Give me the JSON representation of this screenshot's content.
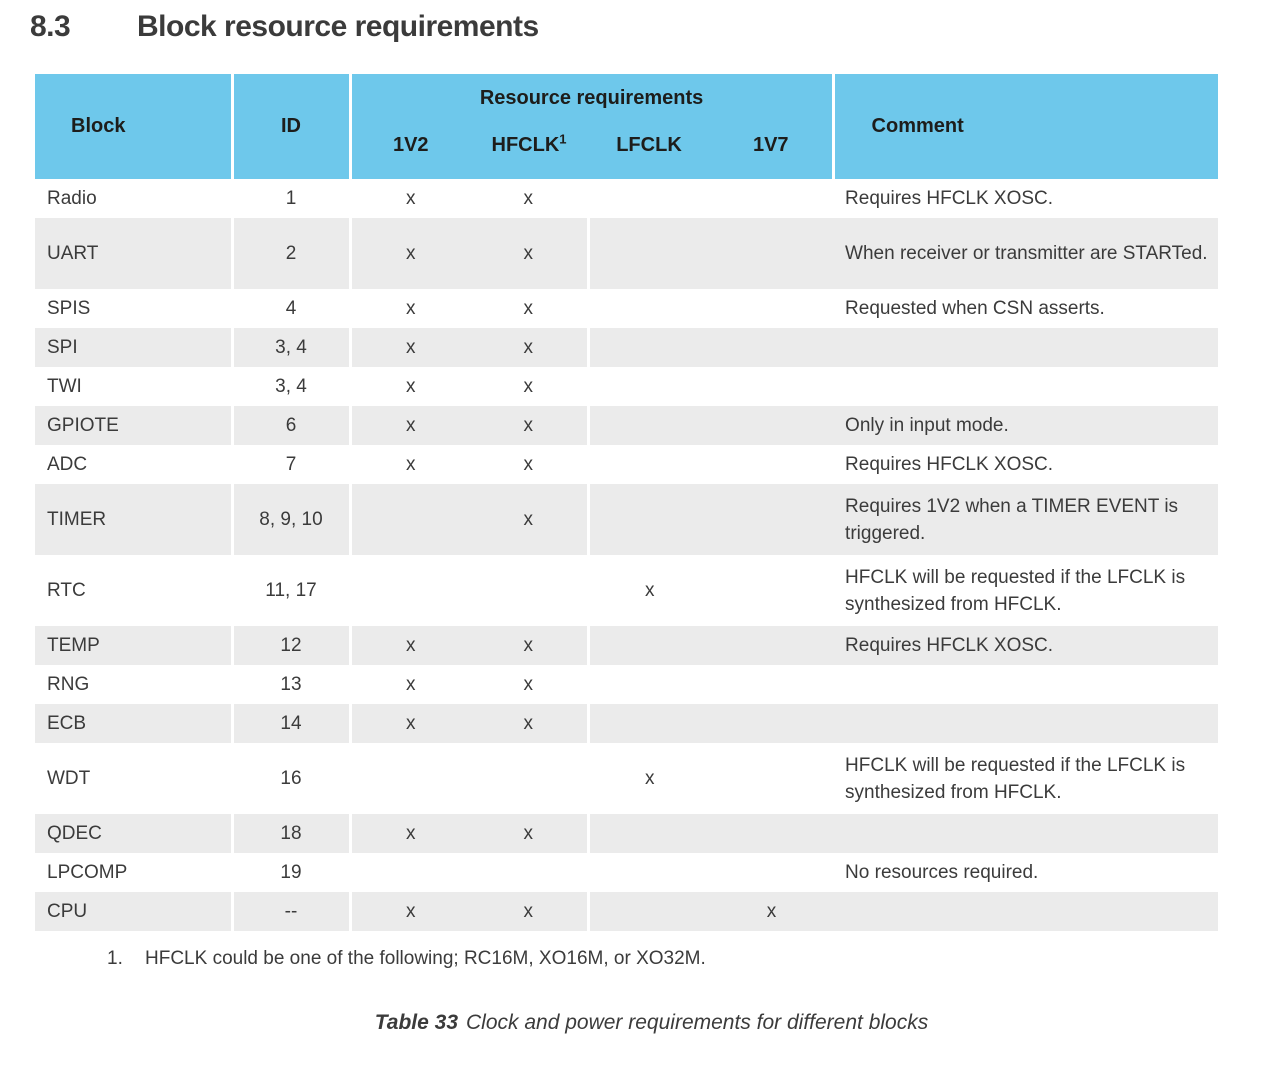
{
  "page": {
    "section_number": "8.3",
    "section_title": "Block resource requirements"
  },
  "table": {
    "header": {
      "block": "Block",
      "id": "ID",
      "resource_group": "Resource requirements",
      "resources": [
        "1V2",
        "HFCLK",
        "LFCLK",
        "1V7"
      ],
      "hfclk_footnote_marker": "1",
      "comment": "Comment"
    },
    "rows": [
      {
        "block": "Radio",
        "id": "1",
        "marks": [
          "x",
          "x",
          "",
          ""
        ],
        "comment": "Requires HFCLK XOSC."
      },
      {
        "block": "UART",
        "id": "2",
        "marks": [
          "x",
          "x",
          "",
          ""
        ],
        "comment": "When receiver or transmitter are STARTed."
      },
      {
        "block": "SPIS",
        "id": "4",
        "marks": [
          "x",
          "x",
          "",
          ""
        ],
        "comment": "Requested when CSN asserts."
      },
      {
        "block": "SPI",
        "id": "3, 4",
        "marks": [
          "x",
          "x",
          "",
          ""
        ],
        "comment": ""
      },
      {
        "block": "TWI",
        "id": "3, 4",
        "marks": [
          "x",
          "x",
          "",
          ""
        ],
        "comment": ""
      },
      {
        "block": "GPIOTE",
        "id": "6",
        "marks": [
          "x",
          "x",
          "",
          ""
        ],
        "comment": "Only in input mode."
      },
      {
        "block": "ADC",
        "id": "7",
        "marks": [
          "x",
          "x",
          "",
          ""
        ],
        "comment": "Requires HFCLK XOSC."
      },
      {
        "block": "TIMER",
        "id": "8, 9, 10",
        "marks": [
          "",
          "x",
          "",
          ""
        ],
        "comment": "Requires 1V2 when a TIMER EVENT is triggered."
      },
      {
        "block": "RTC",
        "id": "11, 17",
        "marks": [
          "",
          "",
          "x",
          ""
        ],
        "comment": "HFCLK will be requested if the LFCLK is synthesized from HFCLK."
      },
      {
        "block": "TEMP",
        "id": "12",
        "marks": [
          "x",
          "x",
          "",
          ""
        ],
        "comment": "Requires HFCLK XOSC."
      },
      {
        "block": "RNG",
        "id": "13",
        "marks": [
          "x",
          "x",
          "",
          ""
        ],
        "comment": ""
      },
      {
        "block": "ECB",
        "id": "14",
        "marks": [
          "x",
          "x",
          "",
          ""
        ],
        "comment": ""
      },
      {
        "block": "WDT",
        "id": "16",
        "marks": [
          "",
          "",
          "x",
          ""
        ],
        "comment": "HFCLK will be requested if the LFCLK is synthesized from HFCLK."
      },
      {
        "block": "QDEC",
        "id": "18",
        "marks": [
          "x",
          "x",
          "",
          ""
        ],
        "comment": ""
      },
      {
        "block": "LPCOMP",
        "id": "19",
        "marks": [
          "",
          "",
          "",
          ""
        ],
        "comment": "No resources required."
      },
      {
        "block": "CPU",
        "id": "--",
        "marks": [
          "x",
          "x",
          "",
          "x"
        ],
        "comment": ""
      }
    ],
    "double_height_rows": [
      "UART",
      "TIMER",
      "RTC",
      "WDT"
    ],
    "footnote": {
      "number": "1.",
      "text": "HFCLK could be one of the following; RC16M, XO16M, or XO32M."
    },
    "caption": {
      "label": "Table 33",
      "text": "Clock and power requirements for different blocks"
    }
  },
  "colors": {
    "header_bg": "#6ec8eb",
    "row_alt_bg": "#ebebeb",
    "text": "#3b3b3b"
  }
}
